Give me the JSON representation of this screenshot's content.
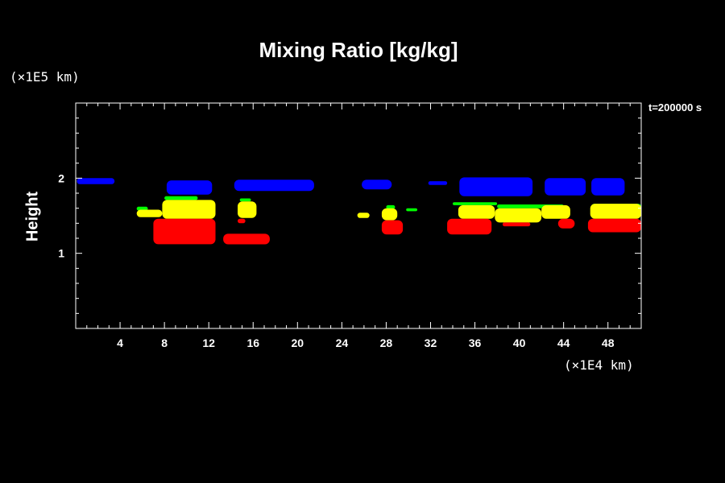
{
  "chart_data": {
    "type": "area",
    "title": "Mixing Ratio [kg/kg]",
    "ylabel": "Height",
    "x_unit": "(×1E4 km)",
    "y_unit": "(×1E5 km)",
    "time_label": "t=200000 s",
    "xlim": [
      0,
      51
    ],
    "ylim": [
      0,
      3
    ],
    "x_ticks": [
      4,
      8,
      12,
      16,
      20,
      24,
      28,
      32,
      36,
      40,
      44,
      48
    ],
    "y_ticks": [
      1,
      2
    ],
    "grid": false,
    "colors": {
      "background": "#000000",
      "frame": "#ffffff",
      "blue": "#0000ff",
      "green": "#00ff00",
      "yellow": "#ffff00",
      "red": "#ff0000"
    },
    "series": [
      {
        "color": "blue",
        "regions": [
          {
            "x": [
              0.1,
              3.5
            ],
            "y": [
              1.92,
              2.0
            ]
          },
          {
            "x": [
              8.2,
              12.3
            ],
            "y": [
              1.78,
              1.97
            ]
          },
          {
            "x": [
              14.3,
              21.5
            ],
            "y": [
              1.83,
              1.98
            ]
          },
          {
            "x": [
              25.8,
              28.5
            ],
            "y": [
              1.85,
              1.98
            ]
          },
          {
            "x": [
              31.8,
              33.5
            ],
            "y": [
              1.91,
              1.96
            ]
          },
          {
            "x": [
              34.6,
              41.2
            ],
            "y": [
              1.76,
              2.01
            ]
          },
          {
            "x": [
              42.3,
              46.0
            ],
            "y": [
              1.77,
              2.0
            ]
          },
          {
            "x": [
              46.5,
              49.5
            ],
            "y": [
              1.77,
              2.0
            ]
          }
        ]
      },
      {
        "color": "green",
        "regions": [
          {
            "x": [
              5.5,
              6.5
            ],
            "y": [
              1.57,
              1.62
            ]
          },
          {
            "x": [
              8.0,
              11.0
            ],
            "y": [
              1.71,
              1.76
            ]
          },
          {
            "x": [
              14.8,
              15.8
            ],
            "y": [
              1.69,
              1.73
            ]
          },
          {
            "x": [
              28.0,
              28.8
            ],
            "y": [
              1.59,
              1.64
            ]
          },
          {
            "x": [
              29.8,
              30.8
            ],
            "y": [
              1.56,
              1.6
            ]
          },
          {
            "x": [
              34.0,
              38.0
            ],
            "y": [
              1.64,
              1.68
            ]
          },
          {
            "x": [
              38.0,
              44.0
            ],
            "y": [
              1.6,
              1.65
            ]
          },
          {
            "x": [
              46.5,
              51.0
            ],
            "y": [
              1.58,
              1.66
            ]
          }
        ]
      },
      {
        "color": "yellow",
        "regions": [
          {
            "x": [
              5.5,
              7.8
            ],
            "y": [
              1.48,
              1.58
            ]
          },
          {
            "x": [
              7.8,
              12.6
            ],
            "y": [
              1.46,
              1.71
            ]
          },
          {
            "x": [
              14.6,
              16.3
            ],
            "y": [
              1.47,
              1.69
            ]
          },
          {
            "x": [
              25.4,
              26.5
            ],
            "y": [
              1.47,
              1.54
            ]
          },
          {
            "x": [
              27.6,
              29.0
            ],
            "y": [
              1.44,
              1.6
            ]
          },
          {
            "x": [
              34.5,
              37.8
            ],
            "y": [
              1.46,
              1.64
            ]
          },
          {
            "x": [
              37.8,
              42.0
            ],
            "y": [
              1.41,
              1.6
            ]
          },
          {
            "x": [
              42.0,
              44.6
            ],
            "y": [
              1.46,
              1.64
            ]
          },
          {
            "x": [
              46.4,
              51.0
            ],
            "y": [
              1.46,
              1.66
            ]
          }
        ]
      },
      {
        "color": "red",
        "regions": [
          {
            "x": [
              7.0,
              12.6
            ],
            "y": [
              1.12,
              1.46
            ]
          },
          {
            "x": [
              13.3,
              17.5
            ],
            "y": [
              1.12,
              1.26
            ]
          },
          {
            "x": [
              14.6,
              15.3
            ],
            "y": [
              1.4,
              1.46
            ]
          },
          {
            "x": [
              27.6,
              29.5
            ],
            "y": [
              1.25,
              1.44
            ]
          },
          {
            "x": [
              33.5,
              37.5
            ],
            "y": [
              1.25,
              1.46
            ]
          },
          {
            "x": [
              38.5,
              41.0
            ],
            "y": [
              1.36,
              1.41
            ]
          },
          {
            "x": [
              43.5,
              45.0
            ],
            "y": [
              1.33,
              1.46
            ]
          },
          {
            "x": [
              46.2,
              51.0
            ],
            "y": [
              1.28,
              1.46
            ]
          }
        ]
      }
    ]
  }
}
